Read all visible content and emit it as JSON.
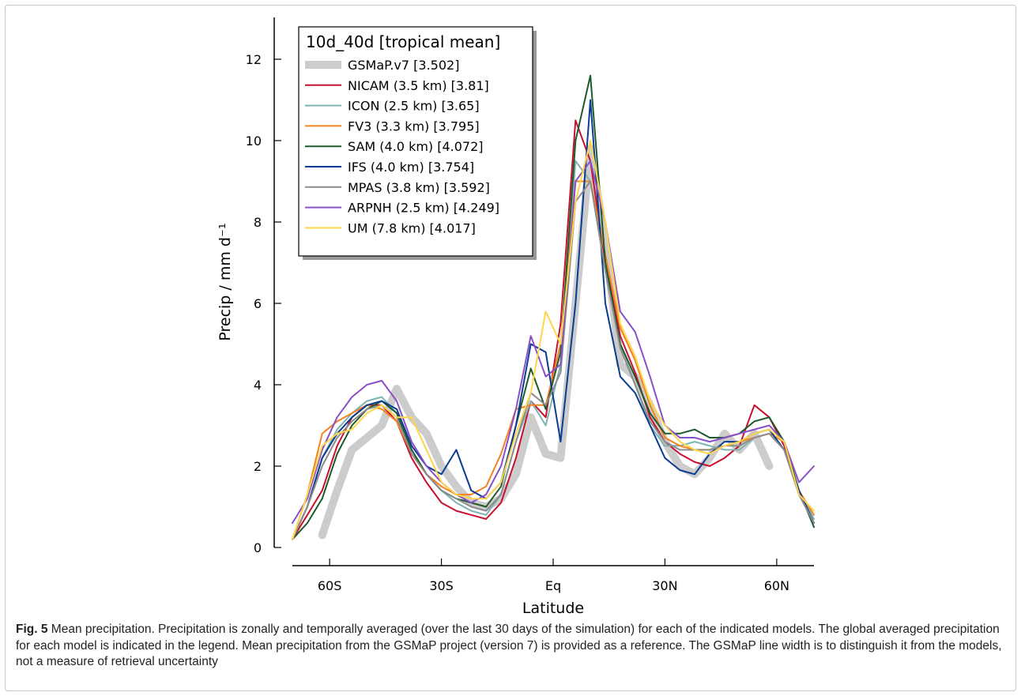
{
  "chart_data": {
    "type": "line",
    "legend_title": "10d_40d [tropical mean]",
    "legend_placement": "top-left",
    "xlabel": "Latitude",
    "ylabel": "Precip / mm d⁻¹",
    "xlim": [
      -70,
      70
    ],
    "ylim": [
      0,
      13
    ],
    "x_ticks": [
      -60,
      -30,
      0,
      30,
      60
    ],
    "x_tick_labels": [
      "60S",
      "30S",
      "Eq",
      "30N",
      "60N"
    ],
    "y_ticks": [
      0,
      2,
      4,
      6,
      8,
      10,
      12
    ],
    "y_tick_labels": [
      "0",
      "2",
      "4",
      "6",
      "8",
      "10",
      "12"
    ],
    "grid": false,
    "x": [
      -70,
      -66,
      -62,
      -58,
      -54,
      -50,
      -46,
      -42,
      -38,
      -34,
      -30,
      -26,
      -22,
      -18,
      -14,
      -10,
      -6,
      -2,
      2,
      6,
      10,
      14,
      18,
      22,
      26,
      30,
      34,
      38,
      42,
      46,
      50,
      54,
      58,
      62,
      66,
      70
    ],
    "series": [
      {
        "name": "GSMaP.v7 [3.502]",
        "color": "#cccccc",
        "thick": true,
        "values": [
          null,
          null,
          0.3,
          1.4,
          2.4,
          2.7,
          3.0,
          3.9,
          3.2,
          2.8,
          2.0,
          1.5,
          1.1,
          1.0,
          1.2,
          1.8,
          3.2,
          2.3,
          2.2,
          6.0,
          9.8,
          7.5,
          4.5,
          4.2,
          3.5,
          2.6,
          2.0,
          1.8,
          2.2,
          2.8,
          2.4,
          2.8,
          2.0,
          null,
          null,
          null
        ]
      },
      {
        "name": "NICAM (3.5 km) [3.81]",
        "color": "#c8102e",
        "values": [
          0.2,
          0.8,
          1.4,
          2.5,
          3.2,
          3.5,
          3.5,
          3.1,
          2.2,
          1.6,
          1.1,
          0.9,
          0.8,
          0.7,
          1.1,
          2.2,
          3.6,
          3.2,
          5.5,
          10.5,
          9.5,
          7.0,
          5.2,
          4.3,
          3.2,
          2.6,
          2.3,
          2.1,
          2.0,
          2.2,
          2.5,
          3.5,
          3.2,
          2.5,
          1.3,
          0.6
        ]
      },
      {
        "name": "ICON (2.5 km) [3.65]",
        "color": "#7fb3b3",
        "values": [
          0.2,
          1.0,
          2.2,
          2.9,
          3.3,
          3.6,
          3.7,
          3.3,
          2.4,
          1.8,
          1.4,
          1.1,
          0.9,
          0.8,
          1.3,
          2.6,
          3.6,
          3.0,
          4.5,
          9.5,
          9.0,
          6.8,
          5.0,
          4.0,
          3.0,
          2.5,
          2.5,
          2.6,
          2.5,
          2.4,
          2.4,
          2.7,
          2.8,
          2.4,
          1.4,
          0.7
        ]
      },
      {
        "name": "FV3 (3.3 km) [3.795]",
        "color": "#f58220",
        "values": [
          0.2,
          1.3,
          2.8,
          3.1,
          3.3,
          3.5,
          3.4,
          3.1,
          2.3,
          1.8,
          1.5,
          1.3,
          1.3,
          1.5,
          2.3,
          3.4,
          3.5,
          3.5,
          5.0,
          9.0,
          9.0,
          7.2,
          5.4,
          4.6,
          3.5,
          2.7,
          2.5,
          2.4,
          2.4,
          2.5,
          2.6,
          2.7,
          2.8,
          2.6,
          1.4,
          0.8
        ]
      },
      {
        "name": "SAM (4.0 km) [4.072]",
        "color": "#1e5b2c",
        "values": [
          0.2,
          0.6,
          1.2,
          2.3,
          3.0,
          3.4,
          3.6,
          3.3,
          2.4,
          1.8,
          1.4,
          1.2,
          1.1,
          1.0,
          1.5,
          3.0,
          4.4,
          3.4,
          4.8,
          10.0,
          11.6,
          7.0,
          5.0,
          4.2,
          3.3,
          2.8,
          2.8,
          2.9,
          2.7,
          2.7,
          2.8,
          3.1,
          3.2,
          2.6,
          1.4,
          0.5
        ]
      },
      {
        "name": "IFS (4.0 km) [3.754]",
        "color": "#0a3d91",
        "values": [
          0.2,
          1.0,
          2.2,
          2.8,
          3.2,
          3.5,
          3.6,
          3.4,
          2.5,
          2.0,
          1.8,
          2.4,
          1.4,
          1.2,
          1.6,
          3.0,
          5.0,
          4.8,
          2.6,
          6.0,
          11.0,
          6.0,
          4.2,
          3.8,
          3.0,
          2.2,
          1.9,
          1.8,
          2.3,
          2.6,
          2.6,
          2.8,
          2.9,
          2.4,
          1.4,
          0.6
        ]
      },
      {
        "name": "MPAS (3.8 km) [3.592]",
        "color": "#8c8c8c",
        "values": [
          0.2,
          1.0,
          2.0,
          2.7,
          3.1,
          3.4,
          3.5,
          3.2,
          2.3,
          1.8,
          1.4,
          1.2,
          1.0,
          0.9,
          1.3,
          2.6,
          3.8,
          3.5,
          4.3,
          8.5,
          9.0,
          6.8,
          4.9,
          4.0,
          3.1,
          2.6,
          2.4,
          2.4,
          2.4,
          2.5,
          2.5,
          2.7,
          2.8,
          2.4,
          1.3,
          0.6
        ]
      },
      {
        "name": "ARPNH (2.5 km) [4.249]",
        "color": "#8a4fc7",
        "values": [
          0.6,
          1.2,
          2.4,
          3.2,
          3.7,
          4.0,
          4.1,
          3.6,
          2.6,
          2.0,
          1.6,
          1.3,
          1.1,
          1.3,
          2.0,
          3.4,
          5.2,
          4.2,
          4.5,
          9.0,
          9.5,
          8.0,
          5.8,
          5.3,
          4.2,
          3.0,
          2.7,
          2.7,
          2.6,
          2.7,
          2.8,
          2.9,
          3.0,
          2.6,
          1.6,
          2.0
        ]
      },
      {
        "name": "UM (7.8 km) [4.017]",
        "color": "#ffd64a",
        "values": [
          0.2,
          1.3,
          2.5,
          2.8,
          2.9,
          3.3,
          3.5,
          3.2,
          3.2,
          2.4,
          1.6,
          1.3,
          1.2,
          1.2,
          1.6,
          2.8,
          3.8,
          5.8,
          5.0,
          8.5,
          10.0,
          8.0,
          5.5,
          4.7,
          3.6,
          3.0,
          2.6,
          2.4,
          2.3,
          2.5,
          2.6,
          2.8,
          2.9,
          2.6,
          1.3,
          0.9
        ]
      }
    ]
  },
  "caption": {
    "label": "Fig. 5",
    "text": " Mean precipitation. Precipitation is zonally and temporally averaged (over the last 30 days of the simulation) for each of the indicated models. The global averaged precipitation for each model is indicated in the legend. Mean precipitation from the GSMaP project (version 7) is provided as a reference. The GSMaP line width is to distinguish it from the models, not a measure of retrieval uncertainty"
  }
}
